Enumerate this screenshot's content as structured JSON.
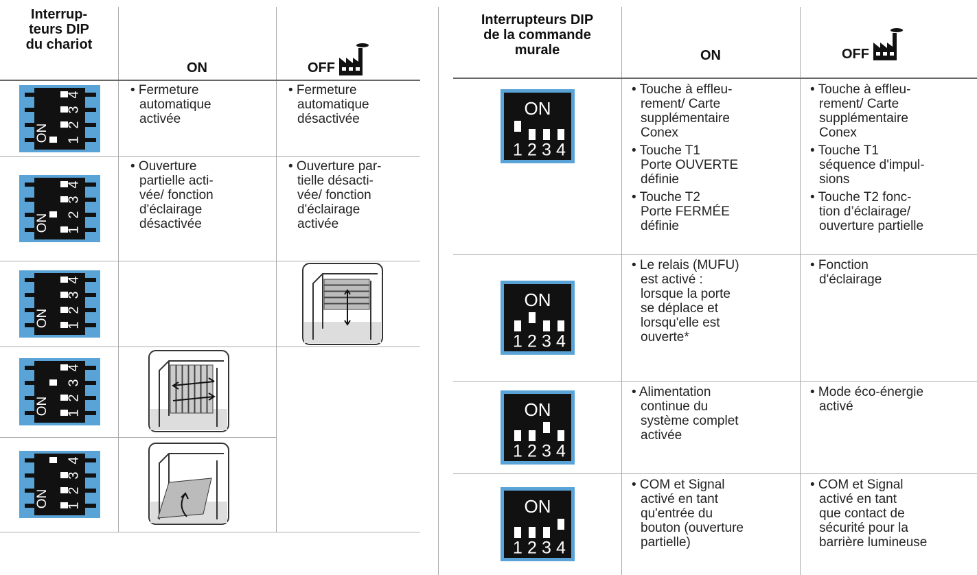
{
  "left_table": {
    "header": [
      "Interrup-\nteurs DIP\ndu chariot",
      "ON",
      "OFF"
    ],
    "rows": [
      {
        "on": [
          "• Fermeture\nautomatique\nactivée"
        ],
        "off": [
          "• Fermeture\nautomatique\ndésactivée"
        ]
      },
      {
        "on": [
          "• Ouverture\npartielle acti-\nvée/ fonction\nd'éclairage\ndésactivée"
        ],
        "off": [
          "• Ouverture par-\ntielle désacti-\nvée/ fonction\nd'éclairage\nactivée"
        ]
      },
      {},
      {},
      {}
    ]
  },
  "right_table": {
    "header": [
      "Interrupteurs DIP\nde la commande\nmurale",
      "ON",
      "OFF"
    ],
    "rows": [
      {
        "on": [
          "• Touche à effleu-\nrement/ Carte\nsupplémentaire\nConex",
          "• Touche T1\nPorte OUVERTE\ndéfinie",
          "• Touche T2\nPorte FERMÉE\ndéfinie"
        ],
        "off": [
          "• Touche à effleu-\nrement/ Carte\nsupplémentaire\nConex",
          "• Touche T1\nséquence d'impul-\nsions",
          "• Touche T2 fonc-\ntion d’éclairage/\nouverture partielle"
        ]
      },
      {
        "on": [
          "• Le relais (MUFU)\nest activé :\nlorsque la porte\nse déplace et\nlorsqu'elle est\nouverte*"
        ],
        "off": [
          "• Fonction\nd'éclairage"
        ]
      },
      {
        "on": [
          "• Alimentation\ncontinue du\nsystème complet\nactivée"
        ],
        "off": [
          "• Mode éco-énergie\nactivé"
        ]
      },
      {
        "on": [
          "• COM et Signal\nactivé en tant\nqu'entrée du\nbouton (ouverture\npartielle)"
        ],
        "off": [
          "• COM et Signal\nactivé en tant\nque contact de\nsécurité pour la\nbarrière lumineuse"
        ]
      }
    ]
  },
  "dip_labels": {
    "on": "ON",
    "numbers": [
      "1",
      "2",
      "3",
      "4"
    ]
  }
}
